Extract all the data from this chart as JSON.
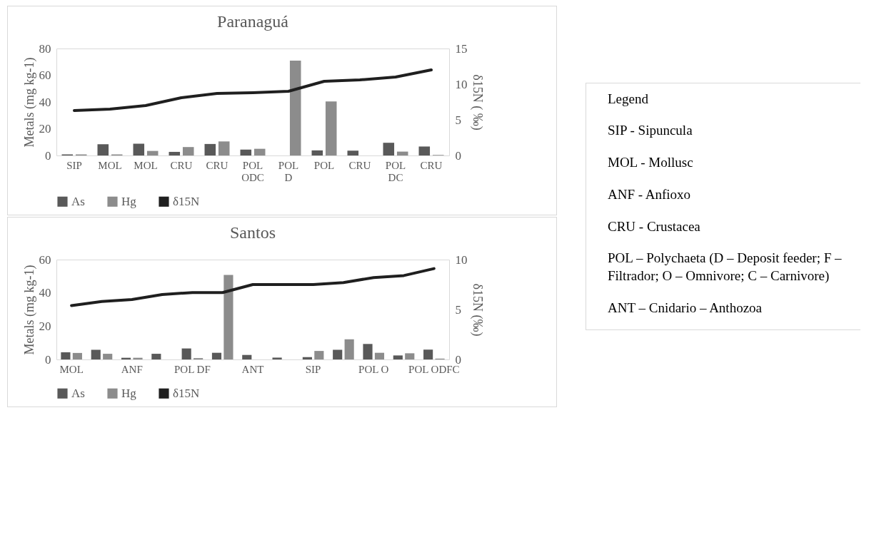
{
  "chart_data": [
    {
      "type": "bar",
      "title": "Paranaguá",
      "ylabel": "Metals (mg kg-1)",
      "y2label": "δ15N ( ‰)",
      "categories": [
        "SIP",
        "MOL",
        "MOL",
        "CRU",
        "CRU",
        "POL ODC",
        "POL D",
        "POL",
        "CRU",
        "POL DC",
        "CRU"
      ],
      "series": [
        {
          "name": "As",
          "color": "#595959",
          "values": [
            0.8,
            8.4,
            8.8,
            2.7,
            8.6,
            4.4,
            null,
            3.8,
            3.6,
            9.5,
            6.7
          ]
        },
        {
          "name": "Hg",
          "color": "#8c8c8c",
          "values": [
            0.8,
            0.8,
            3.4,
            6.3,
            10.5,
            5.0,
            70.9,
            40.4,
            null,
            2.9,
            0.4
          ]
        },
        {
          "name": "δ15N",
          "type": "line",
          "axis": "y2",
          "color": "#1f1f1f",
          "values": [
            6.3,
            6.5,
            7.0,
            8.1,
            8.7,
            8.8,
            9.0,
            10.4,
            10.6,
            11.0,
            12.0
          ]
        }
      ],
      "ylim": [
        0,
        80
      ],
      "yticks": [
        0,
        20,
        40,
        60,
        80
      ],
      "y2lim": [
        0,
        15
      ],
      "y2ticks": [
        0,
        5,
        10,
        15
      ],
      "legend": "bottom"
    },
    {
      "type": "bar",
      "title": "Santos",
      "ylabel": "Metals (mg kg-1)",
      "y2label": "δ15N (‰)",
      "categories": [
        "MOL",
        null,
        "ANF",
        null,
        "POL DF",
        null,
        "ANT",
        null,
        "SIP",
        null,
        "POL O",
        null,
        "POL ODFC"
      ],
      "series": [
        {
          "name": "As",
          "color": "#595959",
          "values": [
            4.3,
            5.8,
            1.0,
            3.4,
            6.6,
            4.0,
            2.7,
            1.1,
            1.4,
            5.8,
            9.3,
            2.4,
            5.9
          ]
        },
        {
          "name": "Hg",
          "color": "#8c8c8c",
          "values": [
            3.9,
            3.4,
            1.0,
            null,
            0.8,
            50.8,
            null,
            null,
            5.1,
            12.1,
            4.0,
            3.7,
            0.5
          ]
        },
        {
          "name": "δ15N",
          "type": "line",
          "axis": "y2",
          "color": "#1f1f1f",
          "values": [
            5.4,
            5.8,
            6.0,
            6.5,
            6.7,
            6.7,
            7.5,
            7.5,
            7.5,
            7.7,
            8.2,
            8.4,
            9.1
          ]
        }
      ],
      "ylim": [
        0,
        60
      ],
      "yticks": [
        0,
        20,
        40,
        60
      ],
      "y2lim": [
        0,
        10
      ],
      "y2ticks": [
        0,
        5,
        10
      ],
      "legend": "bottom"
    },
    {
      "type": "other",
      "title": "Legend",
      "annotations": [
        "SIP - Sipuncula",
        "MOL - Mollusc",
        "ANF - Anfioxo",
        "CRU - Crustacea",
        "POL – Polychaeta (D – Deposit feeder; F –Filtrador; O – Omnivore; C – Carnivore)",
        "ANT – Cnidario – Anthozoa"
      ]
    }
  ]
}
